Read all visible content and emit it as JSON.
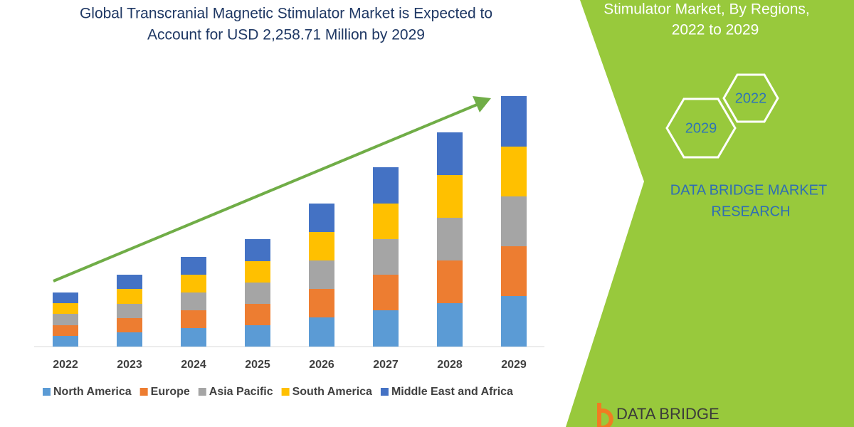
{
  "chart_data": {
    "type": "bar",
    "stacked": true,
    "title": [
      "Global Transcranial Magnetic Stimulator Market is Expected to",
      "Account for USD 2,258.71 Million by 2029"
    ],
    "categories": [
      "2022",
      "2023",
      "2024",
      "2025",
      "2026",
      "2027",
      "2028",
      "2029"
    ],
    "series": [
      {
        "name": "North America",
        "color": "#5b9bd5",
        "values": [
          15,
          20,
          26,
          30,
          41,
          51,
          61,
          71
        ]
      },
      {
        "name": "Europe",
        "color": "#ed7d31",
        "values": [
          15,
          20,
          25,
          30,
          40,
          50,
          60,
          70
        ]
      },
      {
        "name": "Asia Pacific",
        "color": "#a5a5a5",
        "values": [
          16,
          20,
          25,
          30,
          40,
          50,
          60,
          70
        ]
      },
      {
        "name": "South America",
        "color": "#ffc000",
        "values": [
          15,
          21,
          25,
          30,
          40,
          50,
          60,
          70
        ]
      },
      {
        "name": "Middle East and Africa",
        "color": "#4472c4",
        "values": [
          15,
          20,
          25,
          31,
          40,
          51,
          60,
          71
        ]
      }
    ]
  },
  "panel": {
    "heading": [
      "Stimulator Market, By Regions,",
      "2022 to 2029"
    ],
    "hexagons": [
      "2022",
      "2029"
    ],
    "brand": [
      "DATA BRIDGE MARKET",
      "RESEARCH"
    ],
    "logo": "DATA BRIDGE"
  }
}
